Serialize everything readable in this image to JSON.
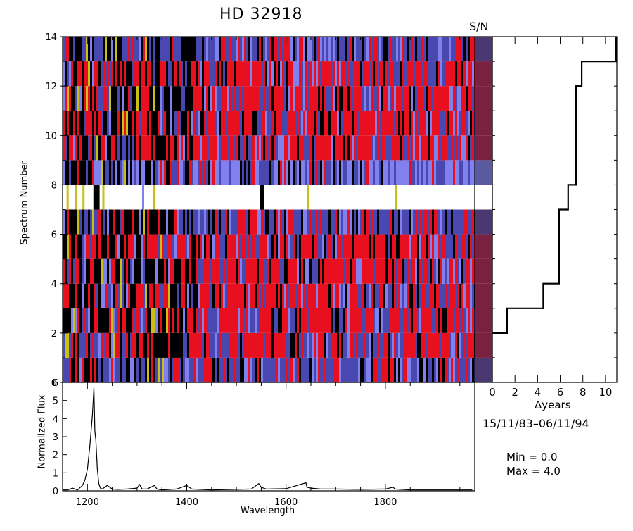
{
  "header": {
    "title": "HD  32918",
    "sn_label": "S/N"
  },
  "labels": {
    "spectrum_number": "Spectrum Number",
    "normalized_flux": "Normalized Flux",
    "wavelength": "Wavelength",
    "delta_years": "Δyears",
    "date_range": "15/11/83–06/11/94",
    "min_text": "Min =   0.0",
    "max_text": "Max =   4.0"
  },
  "colors": {
    "red": "#e8101e",
    "blue": "#4848b0",
    "lavender": "#8080ee",
    "black": "#000000",
    "yellow": "#c8c018",
    "white": "#ffffff",
    "sn_red": "#7a2040",
    "sn_blue": "#4a3870",
    "sn_lav": "#5a5aa0"
  },
  "chart_data": [
    {
      "type": "heatmap",
      "title": "HD  32918",
      "xlabel": "",
      "ylabel": "Spectrum Number",
      "xlim": [
        1150,
        1980
      ],
      "ylim": [
        0,
        14
      ],
      "y_ticks": [
        0,
        2,
        4,
        6,
        8,
        10,
        12,
        14
      ],
      "rows": 14,
      "row_dominant_color": [
        "blue",
        "red",
        "red",
        "red",
        "red",
        "red",
        "blue",
        "white",
        "lavender",
        "red",
        "red",
        "red",
        "red",
        "blue"
      ],
      "colorscale": {
        "min": 0.0,
        "max": 4.0
      }
    },
    {
      "type": "line",
      "title": "",
      "xlabel": "Wavelength",
      "ylabel": "Normalized Flux",
      "xlim": [
        1150,
        1980
      ],
      "ylim": [
        0,
        6
      ],
      "x_ticks": [
        1200,
        1400,
        1600,
        1800
      ],
      "y_ticks": [
        0,
        1,
        2,
        3,
        4,
        5,
        6
      ],
      "x": [
        1150,
        1160,
        1170,
        1180,
        1190,
        1195,
        1200,
        1205,
        1210,
        1213,
        1215,
        1217,
        1220,
        1223,
        1226,
        1230,
        1240,
        1250,
        1260,
        1280,
        1300,
        1305,
        1310,
        1320,
        1335,
        1340,
        1350,
        1380,
        1395,
        1400,
        1410,
        1450,
        1500,
        1530,
        1545,
        1550,
        1560,
        1600,
        1640,
        1642,
        1650,
        1670,
        1700,
        1750,
        1800,
        1815,
        1820,
        1850,
        1900,
        1950,
        1975
      ],
      "y": [
        0.05,
        0.05,
        0.15,
        0.05,
        0.3,
        0.6,
        1.2,
        2.5,
        4.2,
        5.7,
        3.3,
        2.8,
        1.2,
        0.4,
        0.15,
        0.1,
        0.3,
        0.1,
        0.08,
        0.1,
        0.15,
        0.35,
        0.1,
        0.1,
        0.3,
        0.1,
        0.05,
        0.1,
        0.25,
        0.3,
        0.1,
        0.05,
        0.08,
        0.1,
        0.4,
        0.2,
        0.1,
        0.12,
        0.45,
        0.2,
        0.15,
        0.1,
        0.1,
        0.08,
        0.1,
        0.2,
        0.1,
        0.05,
        0.05,
        0.05,
        0.05
      ]
    },
    {
      "type": "line",
      "title": "",
      "xlabel": "Δyears",
      "ylabel": "",
      "xlim": [
        0,
        11
      ],
      "ylim": [
        0,
        14
      ],
      "x_ticks": [
        0,
        2,
        4,
        6,
        8,
        10
      ],
      "step": true,
      "x": [
        0,
        1.3,
        1.3,
        4.5,
        4.5,
        5.9,
        5.9,
        6.7,
        6.7,
        7.4,
        7.4,
        7.9,
        7.9,
        9.4,
        9.4,
        10.9,
        10.9
      ],
      "y": [
        2,
        2,
        3,
        3,
        4,
        4,
        7,
        7,
        8,
        8,
        12,
        12,
        13,
        13,
        13,
        13,
        14
      ]
    }
  ]
}
